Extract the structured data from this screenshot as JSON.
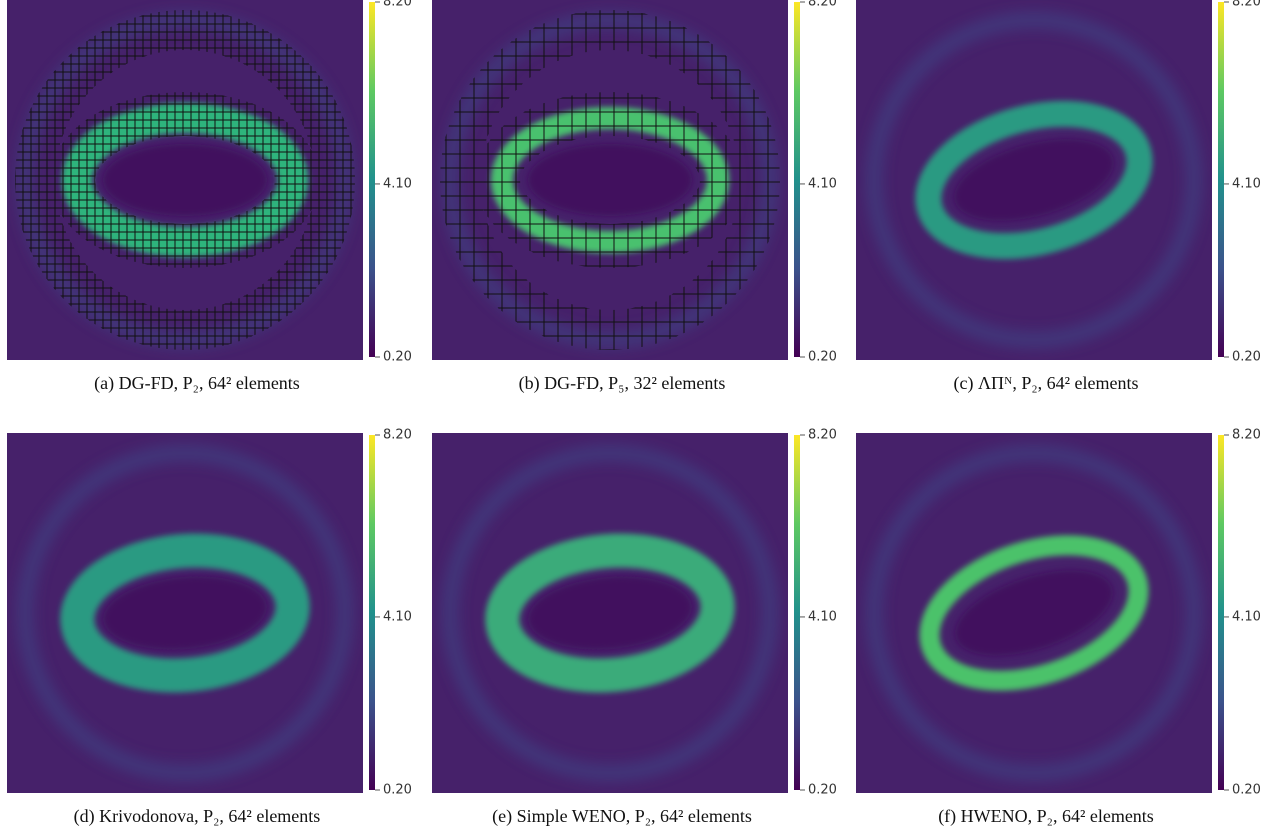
{
  "panels": [
    {
      "caption": "(a) DG-FD, P₂, 64² elements",
      "colorbar": {
        "range": [
          0.2,
          8.2
        ],
        "ticks": [
          {
            "value": 8.2,
            "label": "8.20"
          },
          {
            "value": 4.1,
            "label": "4.10"
          },
          {
            "value": 0.2,
            "label": "0.20"
          }
        ]
      }
    },
    {
      "caption": "(b) DG-FD, P₅, 32² elements",
      "colorbar": {
        "range": [
          0.2,
          8.2
        ],
        "ticks": [
          {
            "value": 8.2,
            "label": "8.20"
          },
          {
            "value": 4.1,
            "label": "4.10"
          },
          {
            "value": 0.2,
            "label": "0.20"
          }
        ]
      }
    },
    {
      "caption": "(c) ΛΠᴺ, P₂, 64² elements",
      "colorbar": {
        "range": [
          0.2,
          8.2
        ],
        "ticks": [
          {
            "value": 8.2,
            "label": "8.20"
          },
          {
            "value": 4.1,
            "label": "4.10"
          },
          {
            "value": 0.2,
            "label": "0.20"
          }
        ]
      }
    },
    {
      "caption": "(d) Krivodonova, P₂, 64² elements",
      "colorbar": {
        "range": [
          0.2,
          8.2
        ],
        "ticks": [
          {
            "value": 8.2,
            "label": "8.20"
          },
          {
            "value": 4.1,
            "label": "4.10"
          },
          {
            "value": 0.2,
            "label": "0.20"
          }
        ]
      }
    },
    {
      "caption": "(e) Simple WENO, P₂, 64² elements",
      "colorbar": {
        "range": [
          0.2,
          8.2
        ],
        "ticks": [
          {
            "value": 8.2,
            "label": "8.20"
          },
          {
            "value": 4.1,
            "label": "4.10"
          },
          {
            "value": 0.2,
            "label": "0.20"
          }
        ]
      }
    },
    {
      "caption": "(f) HWENO, P₂, 64² elements",
      "colorbar": {
        "range": [
          0.2,
          8.2
        ],
        "ticks": [
          {
            "value": 8.2,
            "label": "8.20"
          },
          {
            "value": 4.1,
            "label": "4.10"
          },
          {
            "value": 0.2,
            "label": "0.20"
          }
        ]
      }
    }
  ]
}
